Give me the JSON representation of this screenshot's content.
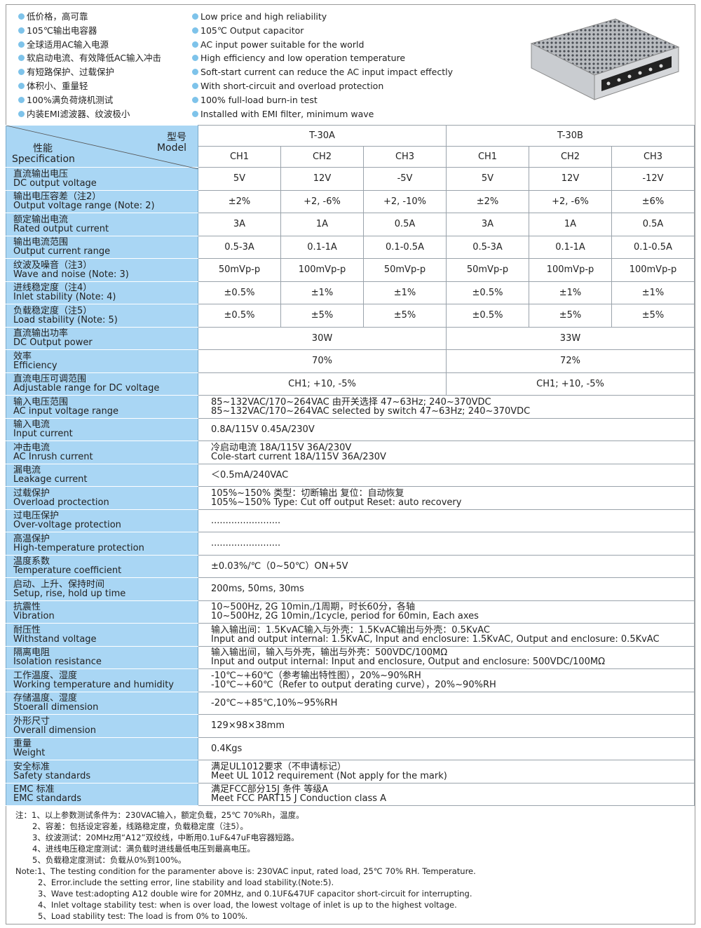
{
  "features_cn": [
    "低价格，高可靠",
    "105℃输出电容器",
    "全球适用AC输入电源",
    "软启动电流、有效降低AC输入冲击",
    "有短路保护、过载保护",
    "体积小、重量轻",
    "100%满负荷烧机测试",
    "内装EMI滤波器、纹波极小"
  ],
  "features_en": [
    "Low price and high reliability",
    "105℃ Output capacitor",
    "AC input power suitable for the world",
    "High efficiency and low operation temperature",
    "Soft-start current can reduce the AC input impact effectly",
    "With short-circuit and overload protection",
    "100% full-load burn-in test",
    "Installed with EMI filter, minimum wave"
  ],
  "header": {
    "model_cn": "型号",
    "model_en": "Model",
    "spec_cn": "性能",
    "spec_en": "Specification",
    "models": [
      "T-30A",
      "T-30B"
    ],
    "channels": [
      "CH1",
      "CH2",
      "CH3",
      "CH1",
      "CH2",
      "CH3"
    ]
  },
  "rows": [
    {
      "cn": "直流输出电压",
      "en": "DC output voltage",
      "type": "ch6",
      "values": [
        "5V",
        "12V",
        "-5V",
        "5V",
        "12V",
        "-12V"
      ]
    },
    {
      "cn": "输出电压容差（注2）",
      "en": "Output voltage range (Note: 2)",
      "type": "ch6",
      "values": [
        "±2%",
        "+2, -6%",
        "+2, -10%",
        "±2%",
        "+2, -6%",
        "±6%"
      ]
    },
    {
      "cn": "额定输出电流",
      "en": "Rated output current",
      "type": "ch6",
      "values": [
        "3A",
        "1A",
        "0.5A",
        "3A",
        "1A",
        "0.5A"
      ]
    },
    {
      "cn": "输出电流范围",
      "en": "Output current range",
      "type": "ch6",
      "values": [
        "0.5-3A",
        "0.1-1A",
        "0.1-0.5A",
        "0.5-3A",
        "0.1-1A",
        "0.1-0.5A"
      ]
    },
    {
      "cn": "纹波及噪音（注3）",
      "en": "Wave and noise (Note: 3)",
      "type": "ch6",
      "values": [
        "50mVp-p",
        "100mVp-p",
        "50mVp-p",
        "50mVp-p",
        "100mVp-p",
        "100mVp-p"
      ]
    },
    {
      "cn": "进线稳定度（注4）",
      "en": "Inlet stability (Note: 4)",
      "type": "ch6",
      "values": [
        "±0.5%",
        "±1%",
        "±1%",
        "±0.5%",
        "±1%",
        "±1%"
      ]
    },
    {
      "cn": "负载稳定度（注5）",
      "en": "Load stability (Note: 5)",
      "type": "ch6",
      "values": [
        "±0.5%",
        "±5%",
        "±5%",
        "±0.5%",
        "±5%",
        "±5%"
      ]
    },
    {
      "cn": "直流输出功率",
      "en": "DC Output power",
      "type": "ch2",
      "values": [
        "30W",
        "33W"
      ]
    },
    {
      "cn": "效率",
      "en": "Efficiency",
      "type": "ch2",
      "values": [
        "70%",
        "72%"
      ]
    },
    {
      "cn": "直流电压可调范围",
      "en": "Adjustable range for DC voltage",
      "type": "ch2",
      "values": [
        "CH1; +10, -5%",
        "CH1; +10, -5%"
      ]
    },
    {
      "cn": "输入电压范围",
      "en": "AC input voltage range",
      "type": "full",
      "values": [
        "85~132VAC/170~264VAC 由开关选择 47~63Hz; 240~370VDC",
        "85~132VAC/170~264VAC selected by switch 47~63Hz; 240~370VDC"
      ]
    },
    {
      "cn": "输入电流",
      "en": "Input current",
      "type": "full",
      "values": [
        "0.8A/115V  0.45A/230V"
      ]
    },
    {
      "cn": "冲击电流",
      "en": "AC Inrush current",
      "type": "full",
      "values": [
        "冷启动电流  18A/115V  36A/230V",
        "Cole-start current 18A/115V  36A/230V"
      ]
    },
    {
      "cn": "漏电流",
      "en": "Leakage current",
      "type": "full",
      "values": [
        "＜0.5mA/240VAC"
      ]
    },
    {
      "cn": "过载保护",
      "en": "Overload proctection",
      "type": "full",
      "values": [
        "105%~150%  类型：切断输出  复位：自动恢复",
        "105%~150% Type: Cut off output  Reset: auto recovery"
      ]
    },
    {
      "cn": "过电压保护",
      "en": "Over-voltage protection",
      "type": "full",
      "values": [
        "........................"
      ]
    },
    {
      "cn": "高温保护",
      "en": "High-temperature protection",
      "type": "full",
      "values": [
        "........................"
      ]
    },
    {
      "cn": "温度系数",
      "en": "Temperature coefficient",
      "type": "full",
      "values": [
        "±0.03%/℃（0~50℃）ON+5V"
      ]
    },
    {
      "cn": "启动、上升、保持时间",
      "en": "Setup, rise, hold up time",
      "type": "full",
      "values": [
        "200ms, 50ms, 30ms"
      ]
    },
    {
      "cn": "抗震性",
      "en": "Vibration",
      "type": "full",
      "values": [
        "10~500Hz, 2G 10min,/1周期，时长60分，各轴",
        "10~500Hz, 2G 10min,/1cycle, period for 60min, Each axes"
      ]
    },
    {
      "cn": "耐压性",
      "en": "Withstand voltage",
      "type": "full",
      "values": [
        "输入输出间：1.5KvAC输入与外壳：1.5KvAC输出与外壳：0.5KvAC",
        "Input and output internal: 1.5KvAC, Input and enclosure: 1.5KvAC, Output and enclosure: 0.5KvAC"
      ]
    },
    {
      "cn": "隔离电阻",
      "en": "Isolation resistance",
      "type": "full",
      "values": [
        "输入输出间，输入与外壳，输出与外壳：500VDC/100MΩ",
        "Input and output internal: Input and enclosure, Output and enclosure: 500VDC/100MΩ"
      ]
    },
    {
      "cn": "工作温度、湿度",
      "en": "Working temperature and humidity",
      "type": "full",
      "values": [
        "-10℃~+60℃（参考输出特性图），20%~90%RH",
        "-10℃~+60℃（Refer to output derating curve），20%~90%RH"
      ]
    },
    {
      "cn": "存储温度、湿度",
      "en": "Stoerall dimension",
      "type": "full",
      "values": [
        "-20℃~+85℃,10%~95%RH"
      ]
    },
    {
      "cn": "外形尺寸",
      "en": "Overall dimension",
      "type": "full",
      "values": [
        "129×98×38mm"
      ]
    },
    {
      "cn": "重量",
      "en": "Weight",
      "type": "full",
      "values": [
        "0.4Kgs"
      ]
    },
    {
      "cn": "安全标准",
      "en": "Safety standards",
      "type": "full",
      "values": [
        "满足UL1012要求（不申请标记）",
        "Meet UL 1012 requirement (Not apply for the mark)"
      ]
    },
    {
      "cn": "EMC 标准",
      "en": "EMC standards",
      "type": "full",
      "values": [
        "满足FCC部分15J 条件 等级A",
        "Meet FCC PART15 J Conduction class A"
      ]
    }
  ],
  "notes_cn": [
    "注：1、以上参数测试条件为：230VAC输入，额定负载，25℃  70%Rh，温度。",
    "2、容差：包括设定容差，线路稳定度，负载稳定度（注5）。",
    "3、纹波测试：20MHz用“A12”双绞线，中断用0.1uF&47uF电容器短路。",
    "4、进线电压稳定度测试：满负载时进线最低电压到最高电压。",
    "5、负载稳定度测试：负载从0%到100%。"
  ],
  "notes_en": [
    "Note:1、The testing condition for the paramenter above is: 230VAC input, rated load, 25℃ 70% RH. Temperature.",
    "2、Error.include the setting error, line stability and load stability.(Note:5).",
    "3、Wave test:adopting  A12  double wire for 20MHz, and 0.1UF&47UF capacitor short-circuit for interrupting.",
    "4、Inlet voltage stability test: when is over load, the lowest voltage of inlet is up to the highest voltage.",
    "5、Load stability test: The load is from 0% to 100%."
  ],
  "colors": {
    "spec_bg": "#a9d6f4",
    "bullet": "#7ec3ea"
  }
}
